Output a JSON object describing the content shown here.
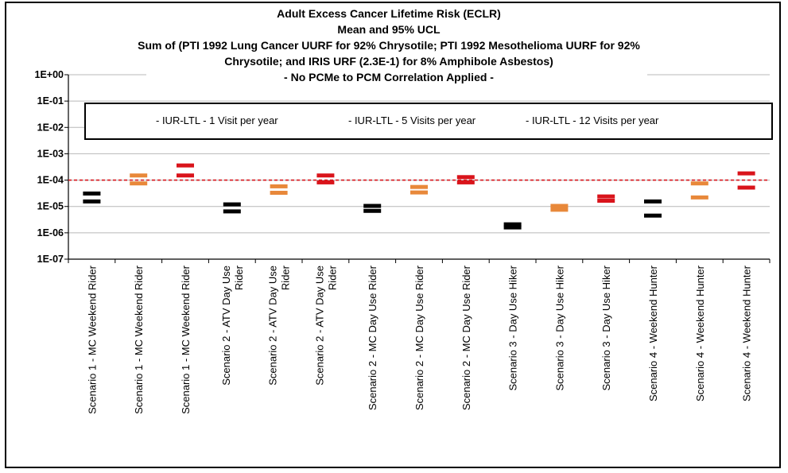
{
  "chart_data": {
    "type": "scatter",
    "title_lines": [
      "Adult Excess Cancer Lifetime Risk (ECLR)",
      "Mean and 95% UCL",
      "Sum of (PTI 1992 Lung Cancer UURF for 92% Chrysotile; PTI 1992 Mesothelioma UURF for  92%",
      "Chrysotile; and IRIS URF (2.3E-1) for 8% Amphibole Asbestos)",
      "- No PCMe to PCM Correlation Applied -"
    ],
    "y_scale": "log",
    "ylim": [
      1e-07,
      1
    ],
    "y_tick_labels": [
      "1E+00",
      "1E-01",
      "1E-02",
      "1E-03",
      "1E-04",
      "1E-05",
      "1E-06",
      "1E-07"
    ],
    "y_ticks": [
      1,
      0.1,
      0.01,
      0.001,
      0.0001,
      1e-05,
      1e-06,
      1e-07
    ],
    "grid": true,
    "reference_line": {
      "value": 0.0001,
      "color": "#d9141b",
      "style": "dashed"
    },
    "legend": {
      "placement": "top",
      "entries": [
        {
          "label": "- IUR-LTL - 1 Visit per year",
          "color": "#000000"
        },
        {
          "label": "- IUR-LTL - 5 Visits per year",
          "color": "#e8883a"
        },
        {
          "label": "- IUR-LTL - 12 Visits per year",
          "color": "#d9141b"
        }
      ]
    },
    "categories": [
      [
        "Scenario 1 - MC Weekend Rider"
      ],
      [
        "Scenario 1 - MC Weekend Rider"
      ],
      [
        "Scenario 1 - MC Weekend Rider"
      ],
      [
        "Scenario 2 - ATV Day Use",
        "Rider"
      ],
      [
        "Scenario 2 - ATV Day Use",
        "Rider"
      ],
      [
        "Scenario 2 - ATV Day Use",
        "Rider"
      ],
      [
        "Scenario 2 - MC Day Use Rider"
      ],
      [
        "Scenario 2 - MC Day Use Rider"
      ],
      [
        "Scenario 2 - MC Day Use Rider"
      ],
      [
        "Scenario 3 - Day Use Hiker"
      ],
      [
        "Scenario 3 - Day Use Hiker"
      ],
      [
        "Scenario 3 - Day Use Hiker"
      ],
      [
        "Scenario 4 - Weekend Hunter"
      ],
      [
        "Scenario 4 - Weekend Hunter"
      ],
      [
        "Scenario 4 - Weekend Hunter"
      ]
    ],
    "series": [
      {
        "visits": 1,
        "color": "#000000",
        "indices": [
          0,
          3,
          6,
          9,
          12
        ]
      },
      {
        "visits": 5,
        "color": "#e8883a",
        "indices": [
          1,
          4,
          7,
          10,
          13
        ]
      },
      {
        "visits": 12,
        "color": "#d9141b",
        "indices": [
          2,
          5,
          8,
          11,
          14
        ]
      }
    ],
    "points": [
      {
        "mean": 1.55e-05,
        "ucl": 3.1e-05
      },
      {
        "mean": 7.5e-05,
        "ucl": 0.00015
      },
      {
        "mean": 0.00015,
        "ucl": 0.00036
      },
      {
        "mean": 6.5e-06,
        "ucl": 1.2e-05
      },
      {
        "mean": 3.3e-05,
        "ucl": 5.8e-05
      },
      {
        "mean": 8.2e-05,
        "ucl": 0.00015
      },
      {
        "mean": 6.8e-06,
        "ucl": 1.05e-05
      },
      {
        "mean": 3.4e-05,
        "ucl": 5.5e-05
      },
      {
        "mean": 8.2e-05,
        "ucl": 0.00013
      },
      {
        "mean": 1.6e-06,
        "ucl": 2.1e-06
      },
      {
        "mean": 7.5e-06,
        "ucl": 1.05e-05
      },
      {
        "mean": 1.65e-05,
        "ucl": 2.4e-05
      },
      {
        "mean": 4.5e-06,
        "ucl": 1.55e-05
      },
      {
        "mean": 2.2e-05,
        "ucl": 7.5e-05
      },
      {
        "mean": 5.2e-05,
        "ucl": 0.00018
      }
    ]
  }
}
